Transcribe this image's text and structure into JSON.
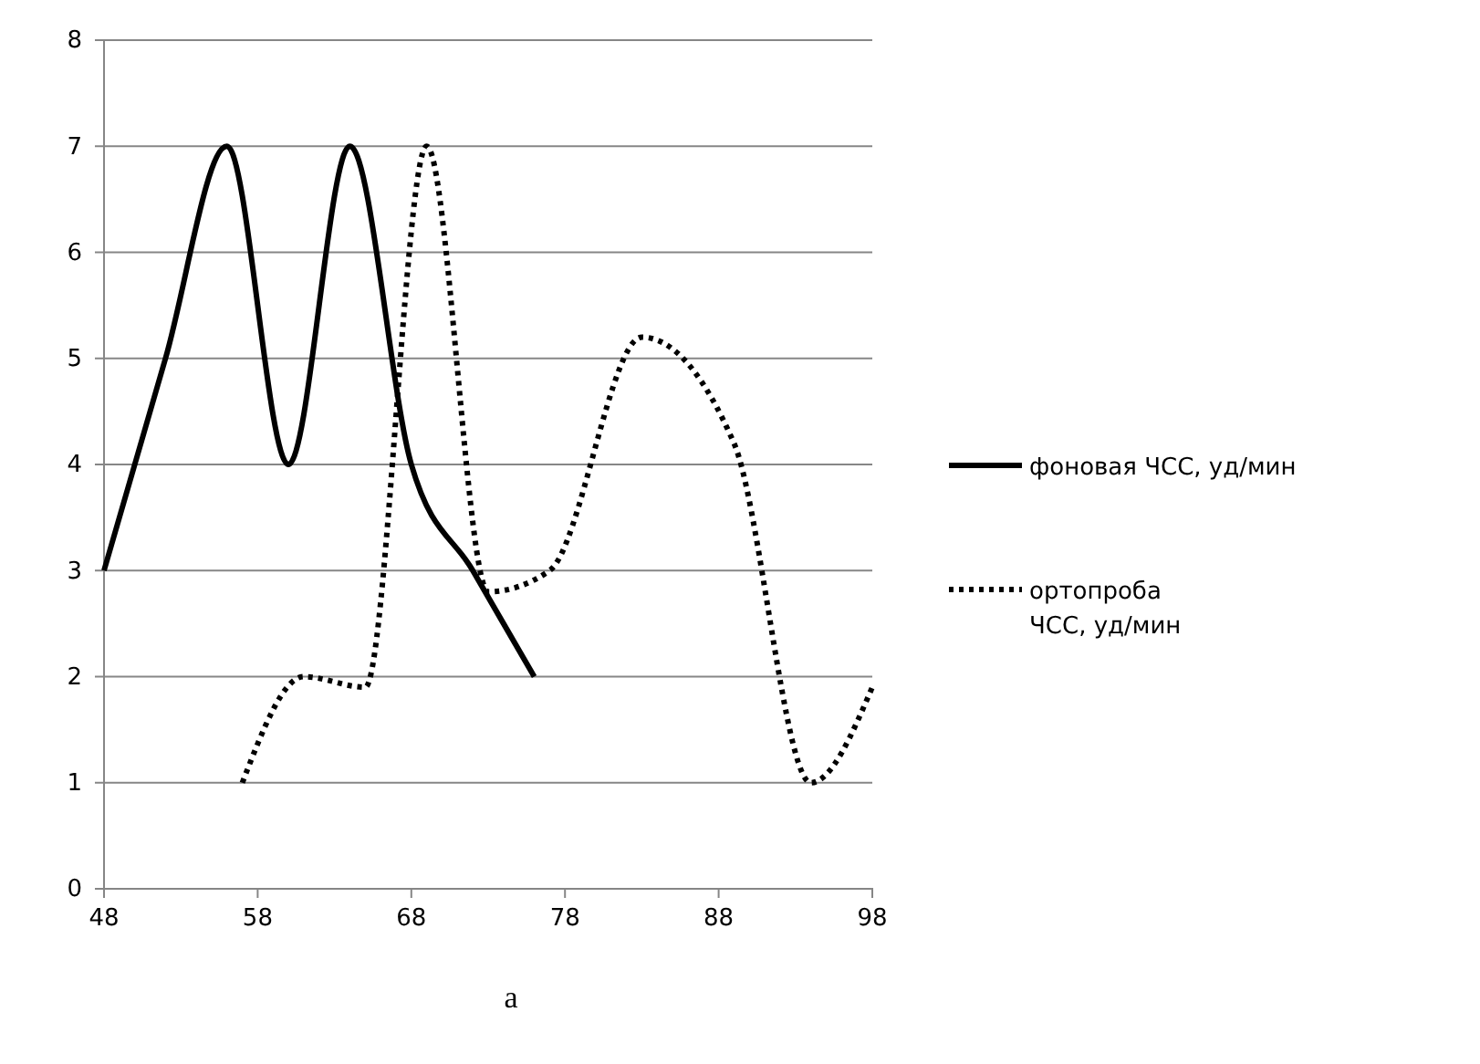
{
  "chart_data": {
    "type": "line",
    "xlim": [
      48,
      98
    ],
    "xticks": [
      48,
      58,
      68,
      78,
      88,
      98
    ],
    "ylim": [
      0,
      8
    ],
    "yticks": [
      0,
      1,
      2,
      3,
      4,
      5,
      6,
      7,
      8
    ],
    "grid": "y",
    "legend": "right",
    "annotations": [
      "а"
    ],
    "series": [
      {
        "name": "фоновая ЧСС, уд/мин",
        "color": "#000000",
        "line_style": "solid",
        "x": [
          48,
          52,
          56,
          60,
          64,
          68,
          72,
          76
        ],
        "values": [
          3,
          5,
          7,
          4,
          7,
          4,
          3,
          2
        ]
      },
      {
        "name": "ортопроба ЧСС, уд/мин",
        "color": "#000000",
        "line_style": "dotted",
        "x": [
          57,
          61,
          65,
          69,
          73,
          77,
          83,
          89,
          94,
          98
        ],
        "values": [
          1,
          2,
          1.9,
          7,
          2.8,
          3,
          5.2,
          4.2,
          1,
          1.9
        ]
      }
    ]
  }
}
